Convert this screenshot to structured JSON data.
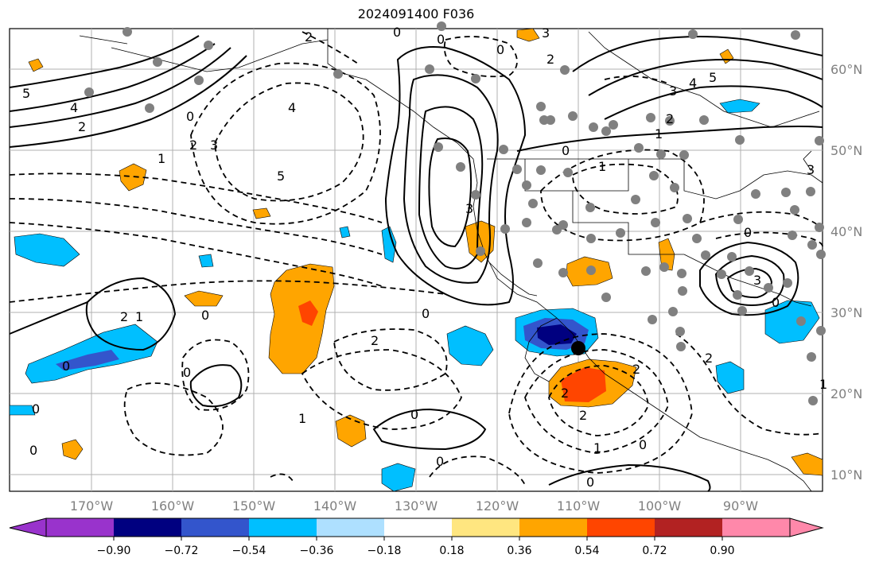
{
  "title": "2024091400 F036",
  "colors": {
    "background": "#ffffff",
    "grid": "#b0b0b0",
    "axis_label": "#808080",
    "contour": "#000000",
    "station": "#808080"
  },
  "latitude_labels": [
    "60°N",
    "50°N",
    "40°N",
    "30°N",
    "20°N",
    "10°N"
  ],
  "longitude_labels": [
    "170°W",
    "160°W",
    "150°W",
    "140°W",
    "130°W",
    "120°W",
    "110°W",
    "100°W",
    "90°W"
  ],
  "colorbar": {
    "tick_labels": [
      "−0.90",
      "−0.72",
      "−0.54",
      "−0.36",
      "−0.18",
      "0.18",
      "0.36",
      "0.54",
      "0.72",
      "0.90"
    ],
    "colors": [
      "#9933cc",
      "#000080",
      "#3355cc",
      "#00bfff",
      "#aee0ff",
      "#ffffff",
      "#ffe680",
      "#ffa500",
      "#ff4500",
      "#b22222",
      "#ff88aa"
    ]
  },
  "contour_labels": [
    "2",
    "0",
    "3",
    "5",
    "4",
    "2",
    "0",
    "2",
    "3",
    "4",
    "5",
    "1",
    "0",
    "3",
    "2",
    "4",
    "5",
    "3",
    "2",
    "1",
    "0",
    "0",
    "2",
    "0",
    "1",
    "0",
    "0",
    "2",
    "1",
    "0",
    "3",
    "3",
    "0",
    "2",
    "0",
    "1",
    "0",
    "2",
    "0",
    "1",
    "2",
    "2",
    "0",
    "1",
    "0",
    "0",
    "0"
  ],
  "fill_colors": {
    "pos_light": "#ffa500",
    "pos_mid": "#ff4500",
    "pos_strong": "#ff4500",
    "neg_light": "#00bfff",
    "neg_mid": "#3355cc",
    "neg_strong": "#000080"
  }
}
